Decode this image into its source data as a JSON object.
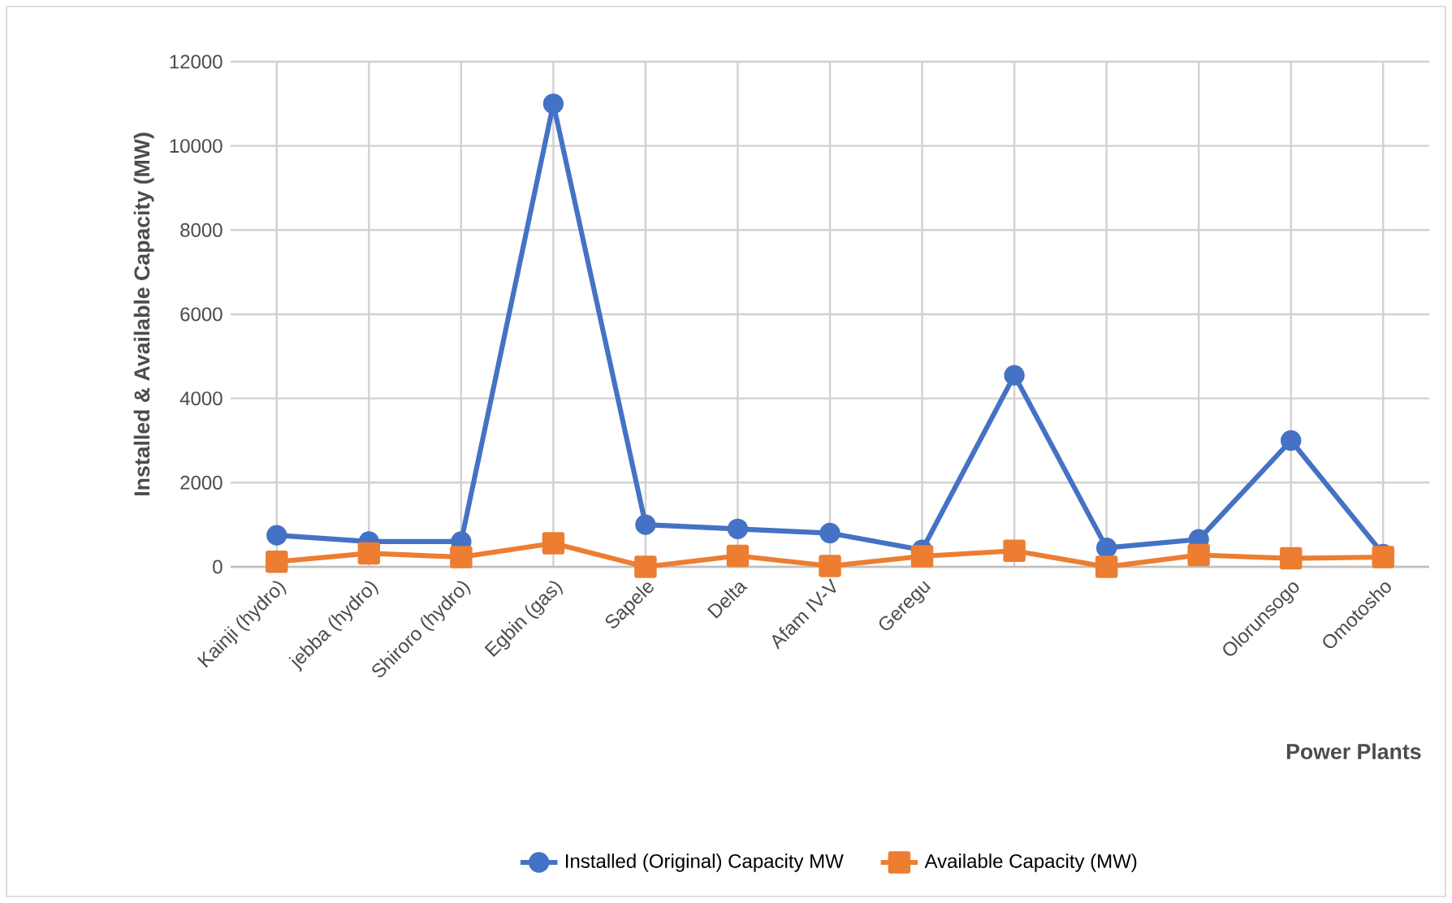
{
  "chart_data": {
    "type": "line",
    "xlabel": "Power Plants",
    "ylabel": "Installed & Available  Capacity (MW)",
    "categories": [
      "Kainji (hydro)",
      "jebba (hydro)",
      "Shiroro (hydro)",
      "Egbin (gas)",
      "Sapele",
      "Delta",
      "Afam IV-V",
      "Geregu",
      null,
      null,
      null,
      "Olorunsogo",
      "Omotosho"
    ],
    "series": [
      {
        "name": "Installed (Original) Capacity MW",
        "color": "#4472c4",
        "marker": "circle",
        "values": [
          750,
          600,
          600,
          11000,
          1000,
          900,
          800,
          400,
          4550,
          450,
          650,
          3000,
          300
        ]
      },
      {
        "name": "Available Capacity (MW)",
        "color": "#ed7d31",
        "marker": "square",
        "values": [
          120,
          320,
          230,
          560,
          0,
          260,
          20,
          250,
          380,
          0,
          280,
          200,
          230
        ]
      }
    ],
    "ylim": [
      0,
      12000
    ],
    "yticks": [
      0,
      2000,
      4000,
      6000,
      8000,
      10000,
      12000
    ],
    "grid": true,
    "legend": "bottom"
  }
}
